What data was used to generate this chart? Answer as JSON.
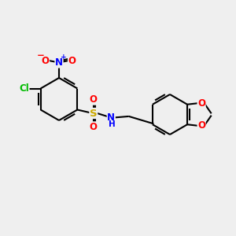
{
  "background_color": "#efefef",
  "bond_color": "#000000",
  "bond_width": 1.5,
  "atom_colors": {
    "N": "#0000ff",
    "O": "#ff0000",
    "S": "#ccaa00",
    "Cl": "#00bb00"
  },
  "font_size": 8.5,
  "fig_size": [
    3.0,
    3.0
  ],
  "dpi": 100,
  "xlim": [
    0,
    10
  ],
  "ylim": [
    0,
    10
  ]
}
